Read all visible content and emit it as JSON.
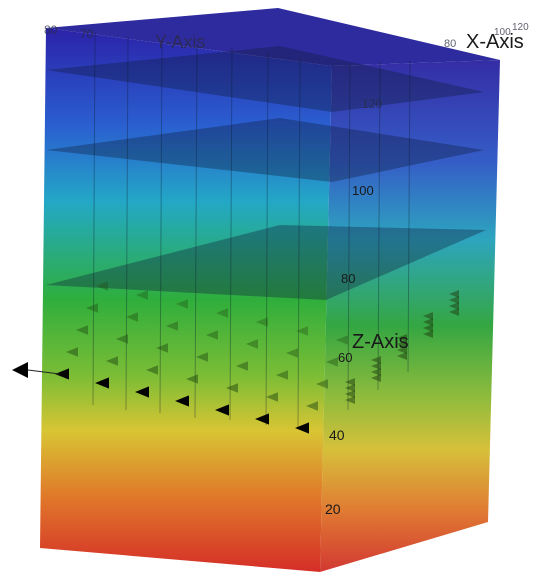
{
  "axes": {
    "x_axis_label": "X-Axis",
    "y_axis_label": "Y-Axis",
    "z_axis_label": "Z-Axis",
    "z_ticks": [
      "20",
      "40",
      "60",
      "80",
      "100",
      "120"
    ],
    "x_ticks_top": [
      "80",
      "100",
      "120"
    ],
    "y_ticks_top": [
      "80",
      "70"
    ]
  },
  "colors": {
    "top": "#2320a6",
    "upper": "#1ea6c8",
    "middle": "#2fae3b",
    "lower": "#d7c233",
    "bottom": "#d63a2a"
  },
  "markers": {
    "icon": "left-pointing-triangle-icon",
    "front_row_count": 7
  }
}
